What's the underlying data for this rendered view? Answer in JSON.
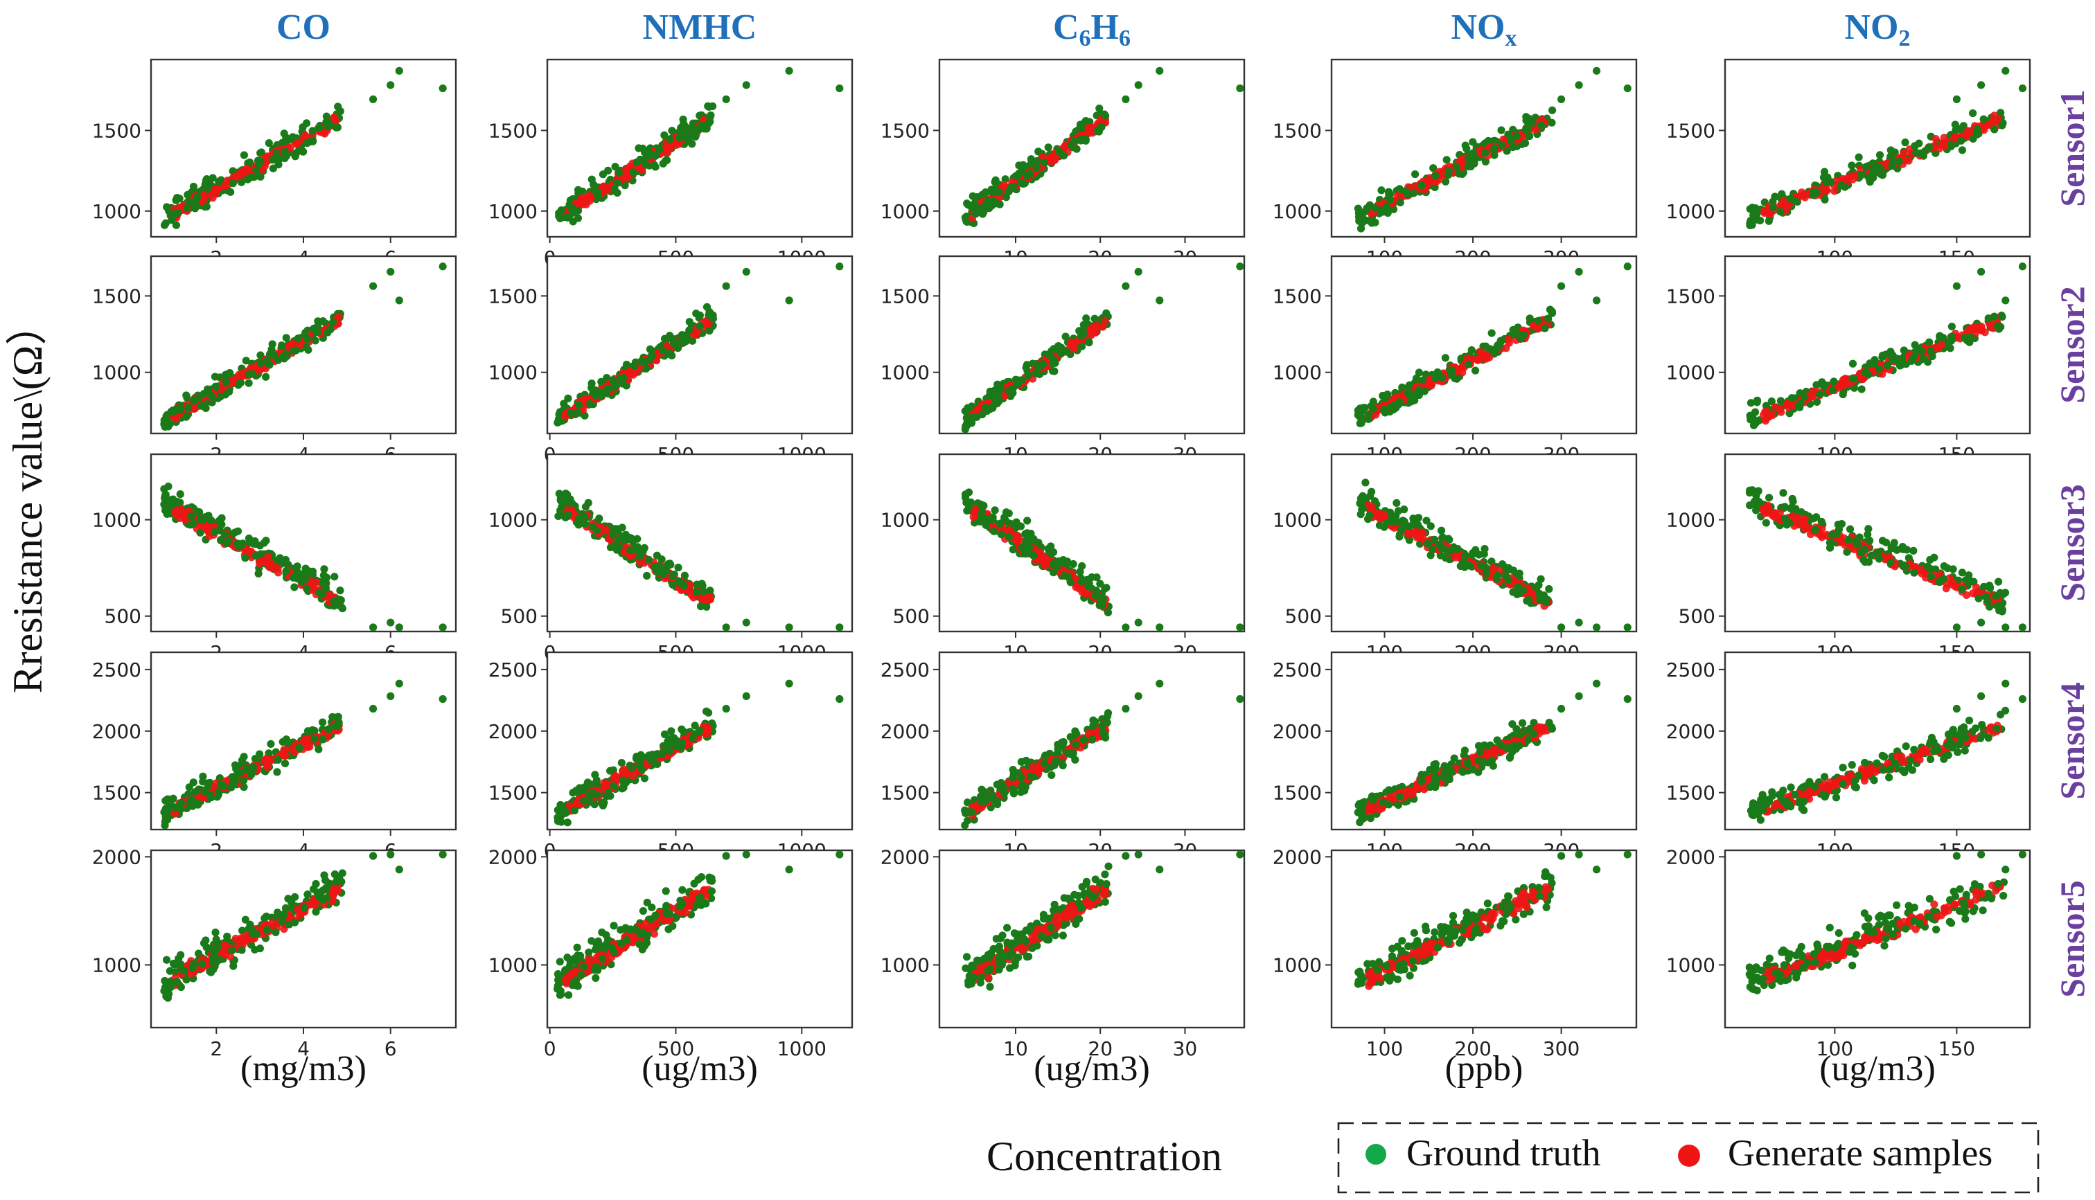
{
  "figure": {
    "y_axis_label": "Rresistance value\\(Ω）",
    "x_axis_label": "Concentration",
    "legend": {
      "ground_truth": "Ground truth",
      "generated": "Generate samples"
    },
    "colors": {
      "ground_truth": "#1a7a1a",
      "generated": "#f01515",
      "column_title": "#1f6fba",
      "row_label": "#6a3fa0"
    }
  },
  "chart_data": {
    "type": "scatter",
    "layout": "grid of 5 rows (sensors) x 5 columns (pollutants)",
    "columns": [
      {
        "key": "CO",
        "title": "CO",
        "title_main": "CO",
        "title_sub": "",
        "unit": "(mg/m3)",
        "xlim": [
          0.5,
          7.5
        ],
        "xticks": [
          2,
          4,
          6
        ],
        "xmin": 0.8,
        "xmax": 4.9,
        "outliers": [
          5.6,
          6.0,
          6.2,
          7.2
        ]
      },
      {
        "key": "NMHC",
        "title": "NMHC",
        "title_main": "NMHC",
        "title_sub": "",
        "unit": "(ug/m3)",
        "xlim": [
          -10,
          1200
        ],
        "xticks": [
          0,
          500,
          1000
        ],
        "xmin": 30,
        "xmax": 650,
        "outliers": [
          700,
          780,
          950,
          1150
        ]
      },
      {
        "key": "C6H6",
        "title": "C6H6",
        "title_main": "C",
        "title_sub": "6",
        "unit": "(ug/m3)",
        "xlim": [
          1,
          37
        ],
        "xticks": [
          10,
          20,
          30
        ],
        "xmin": 4,
        "xmax": 21,
        "outliers": [
          23,
          24.5,
          27,
          36.5
        ]
      },
      {
        "key": "NOx",
        "title": "NOx",
        "title_main": "NO",
        "title_sub": "x",
        "unit": "(ppb)",
        "xlim": [
          40,
          385
        ],
        "xticks": [
          100,
          200,
          300
        ],
        "xmin": 70,
        "xmax": 290,
        "outliers": [
          300,
          320,
          340,
          375
        ]
      },
      {
        "key": "NO2",
        "title": "NO2",
        "title_main": "NO",
        "title_sub": "2",
        "unit": "(ug/m3)",
        "xlim": [
          55,
          180
        ],
        "xticks": [
          100,
          150
        ],
        "xmin": 65,
        "xmax": 170,
        "outliers": [
          150,
          160,
          170,
          177
        ]
      }
    ],
    "rows": [
      {
        "sensor": "Sensor1",
        "ylim": [
          840,
          1940
        ],
        "yticks": [
          1000,
          1500
        ],
        "y_at_min": 950,
        "y_at_max": 1580,
        "spread": 90
      },
      {
        "sensor": "Sensor2",
        "ylim": [
          600,
          1760
        ],
        "yticks": [
          1000,
          1500
        ],
        "y_at_min": 680,
        "y_at_max": 1350,
        "spread": 85
      },
      {
        "sensor": "Sensor3",
        "ylim": [
          420,
          1340
        ],
        "yticks": [
          500,
          1000
        ],
        "y_at_min": 1080,
        "y_at_max": 560,
        "spread": 85
      },
      {
        "sensor": "Sensor4",
        "ylim": [
          1200,
          2640
        ],
        "yticks": [
          1500,
          2000,
          2500
        ],
        "y_at_min": 1320,
        "y_at_max": 2050,
        "spread": 120
      },
      {
        "sensor": "Sensor5",
        "ylim": [
          420,
          2060
        ],
        "yticks": [
          1000,
          2000
        ],
        "y_at_min": 820,
        "y_at_max": 1720,
        "spread": 190
      }
    ],
    "series": [
      {
        "name": "Ground truth",
        "color": "#1a7a1a",
        "points_per_panel": 150
      },
      {
        "name": "Generate samples",
        "color": "#f01515",
        "points_per_panel": 130
      }
    ]
  }
}
